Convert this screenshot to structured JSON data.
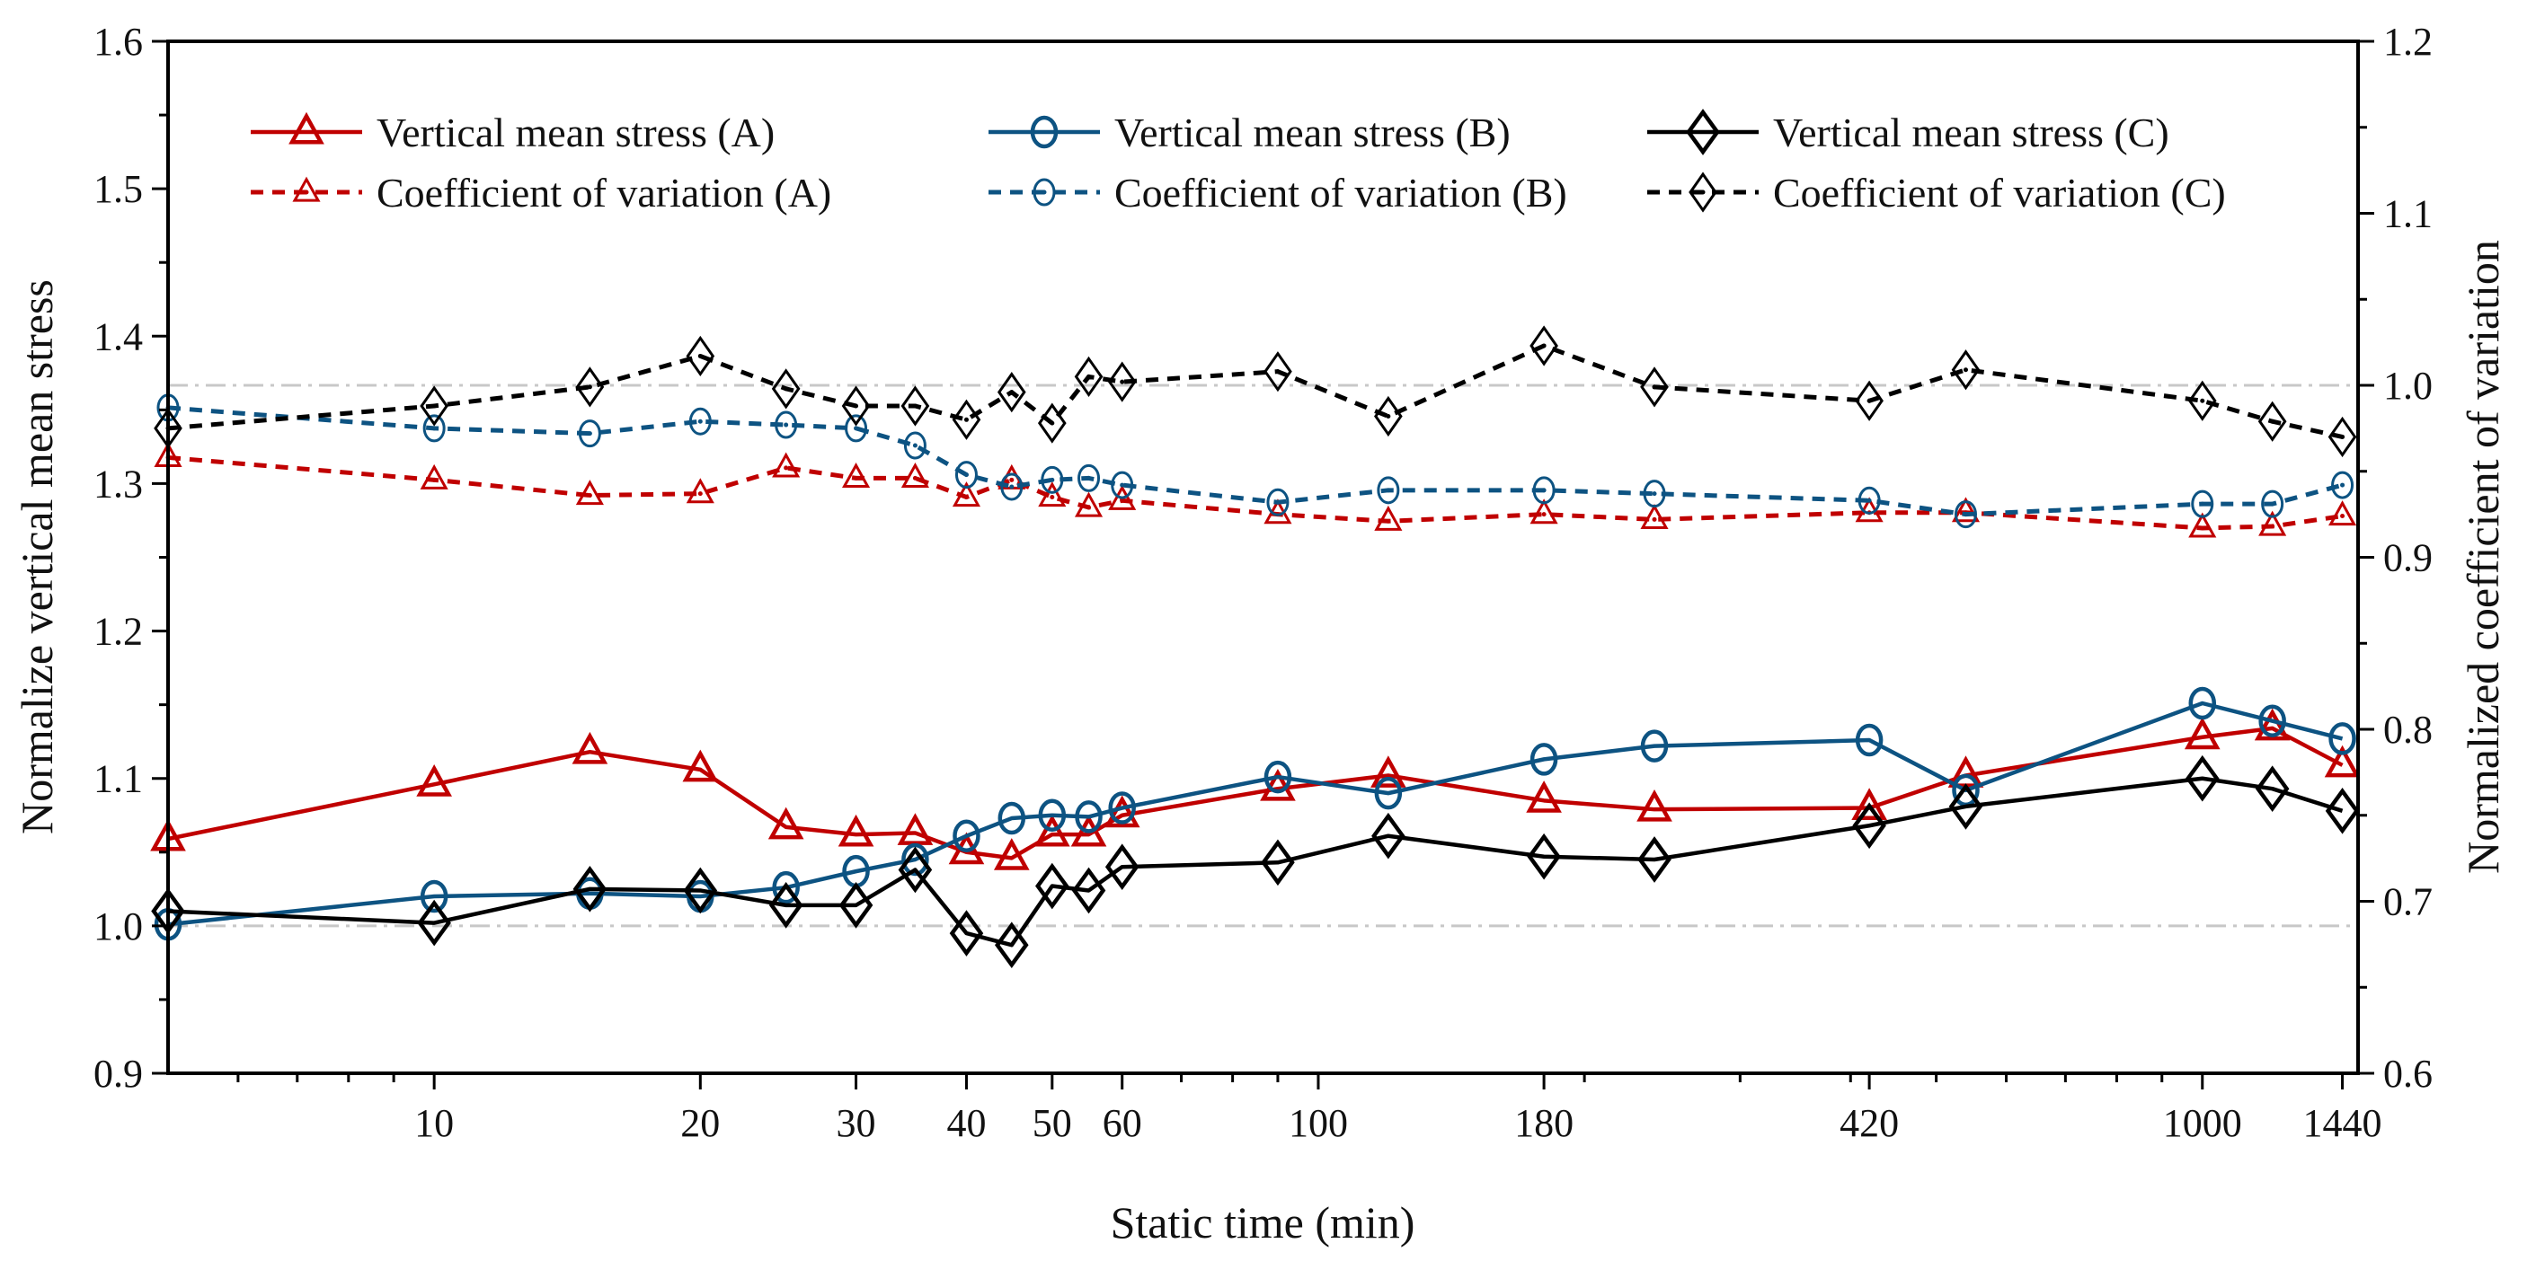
{
  "chart_data": {
    "type": "line",
    "title": "",
    "xlabel": "Static time (min)",
    "ylabel": "Normalize vertical mean stress",
    "y2label": "Normalized coefficient of variation",
    "xscale": "log",
    "xlim": [
      5,
      1500
    ],
    "ylim": [
      0.9,
      1.6
    ],
    "y2lim": [
      0.6,
      1.2
    ],
    "x_ticks": [
      "10",
      "20",
      "30",
      "40",
      "50",
      "60",
      "100",
      "180",
      "420",
      "1000",
      "1440"
    ],
    "y_ticks": [
      "0.9",
      "1.0",
      "1.1",
      "1.2",
      "1.3",
      "1.4",
      "1.5",
      "1.6"
    ],
    "y2_ticks": [
      "0.6",
      "0.7",
      "0.8",
      "0.9",
      "1.0",
      "1.1",
      "1.2"
    ],
    "grid": false,
    "legend_position": "top",
    "reference_lines": [
      {
        "axis": "left",
        "value": 1.0,
        "style": "dash-dot",
        "color": "#c8c8c8"
      },
      {
        "axis": "right",
        "value": 1.0,
        "style": "dash-dot",
        "color": "#c8c8c8"
      }
    ],
    "x": [
      5,
      10,
      15,
      20,
      25,
      30,
      35,
      40,
      45,
      50,
      55,
      60,
      90,
      120,
      180,
      240,
      420,
      540,
      1000,
      1200,
      1440
    ],
    "series": [
      {
        "name": "Vertical mean stress (A)",
        "axis": "left",
        "color": "#c00000",
        "style": "solid",
        "marker": "triangle",
        "values": [
          1.059,
          1.096,
          1.118,
          1.106,
          1.067,
          1.062,
          1.063,
          1.05,
          1.046,
          1.062,
          1.062,
          1.075,
          1.093,
          1.102,
          1.085,
          1.079,
          1.08,
          1.102,
          1.128,
          1.134,
          1.109
        ]
      },
      {
        "name": "Vertical mean stress (B)",
        "axis": "left",
        "color": "#0d5382",
        "style": "solid",
        "marker": "circle",
        "values": [
          1.001,
          1.02,
          1.022,
          1.02,
          1.026,
          1.037,
          1.045,
          1.061,
          1.073,
          1.075,
          1.074,
          1.08,
          1.101,
          1.09,
          1.113,
          1.122,
          1.126,
          1.092,
          1.151,
          1.139,
          1.127
        ]
      },
      {
        "name": "Vertical mean stress (C)",
        "axis": "left",
        "color": "#000000",
        "style": "solid",
        "marker": "diamond",
        "values": [
          1.01,
          1.002,
          1.025,
          1.024,
          1.014,
          1.014,
          1.038,
          0.995,
          0.987,
          1.027,
          1.024,
          1.04,
          1.043,
          1.061,
          1.047,
          1.045,
          1.068,
          1.081,
          1.1,
          1.093,
          1.078
        ]
      },
      {
        "name": "Coefficient of variation (A)",
        "axis": "right",
        "color": "#c00000",
        "style": "dashed",
        "marker": "triangle",
        "values": [
          0.958,
          0.945,
          0.936,
          0.937,
          0.952,
          0.946,
          0.946,
          0.935,
          0.945,
          0.935,
          0.929,
          0.933,
          0.925,
          0.921,
          0.925,
          0.922,
          0.926,
          0.926,
          0.917,
          0.918,
          0.924
        ]
      },
      {
        "name": "Coefficient of variation (B)",
        "axis": "right",
        "color": "#0d5382",
        "style": "dashed",
        "marker": "circle",
        "values": [
          0.987,
          0.975,
          0.972,
          0.979,
          0.977,
          0.975,
          0.965,
          0.948,
          0.941,
          0.945,
          0.946,
          0.942,
          0.932,
          0.939,
          0.939,
          0.937,
          0.933,
          0.925,
          0.931,
          0.931,
          0.942
        ]
      },
      {
        "name": "Coefficient of variation (C)",
        "axis": "right",
        "color": "#000000",
        "style": "dashed",
        "marker": "diamond",
        "values": [
          0.975,
          0.988,
          0.999,
          1.017,
          0.998,
          0.988,
          0.988,
          0.98,
          0.996,
          0.978,
          1.005,
          1.002,
          1.008,
          0.982,
          1.023,
          0.999,
          0.991,
          1.009,
          0.991,
          0.979,
          0.97
        ]
      }
    ]
  }
}
